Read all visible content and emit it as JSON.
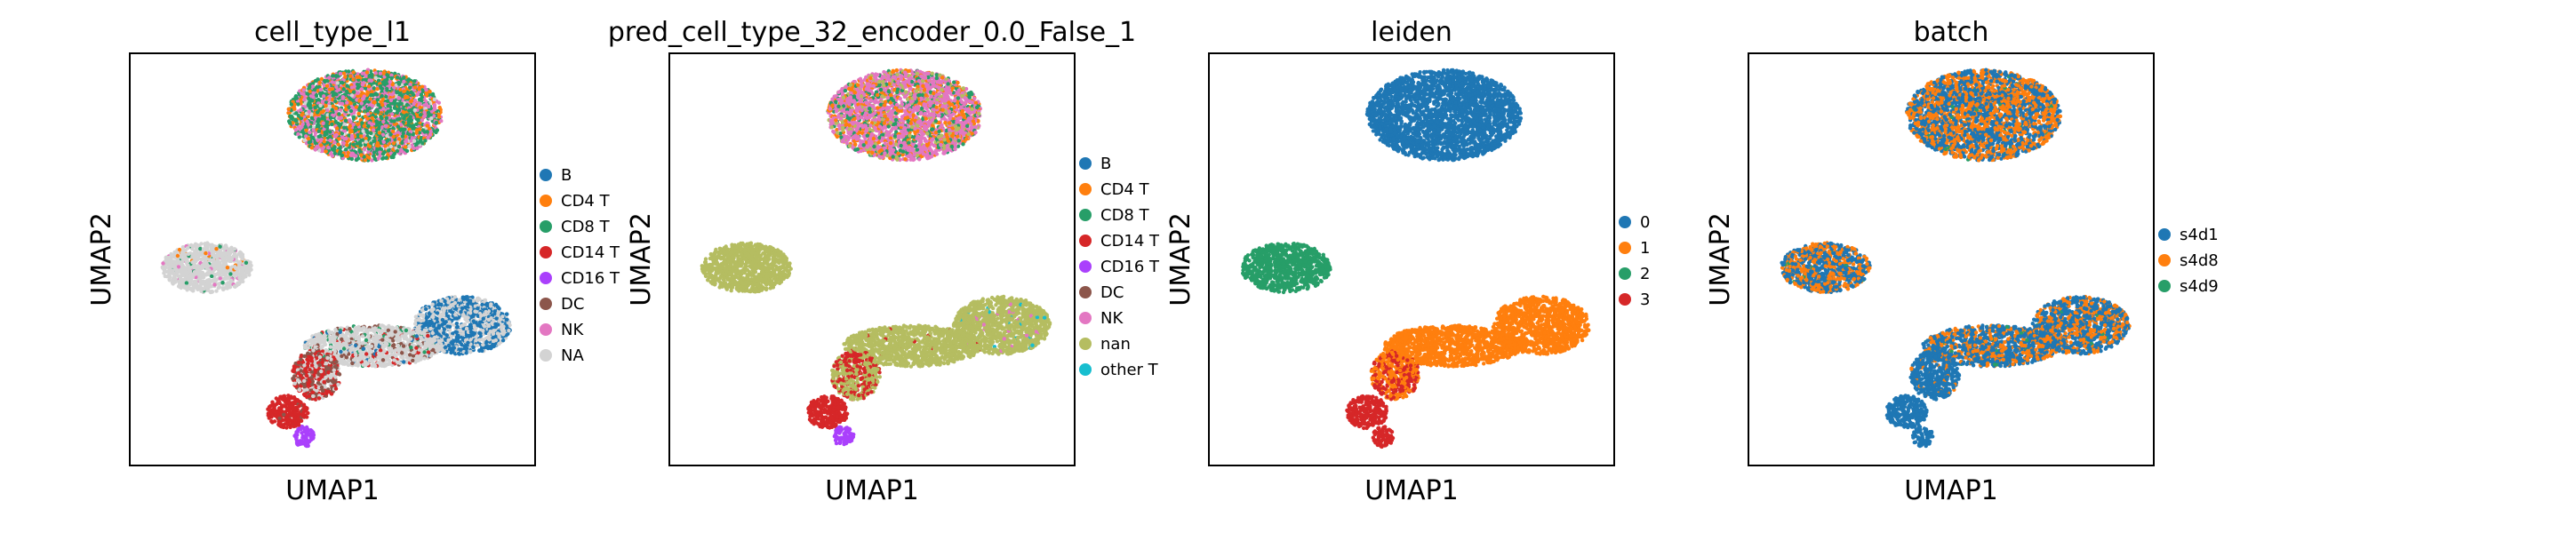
{
  "chart_data": [
    {
      "type": "scatter",
      "title": "cell_type_l1",
      "xlabel": "UMAP1",
      "ylabel": "UMAP2",
      "legend": [
        {
          "label": "B",
          "color": "#1f77b4"
        },
        {
          "label": "CD4 T",
          "color": "#ff7f0e"
        },
        {
          "label": "CD8 T",
          "color": "#279e68"
        },
        {
          "label": "CD14 T",
          "color": "#d62728"
        },
        {
          "label": "CD16 T",
          "color": "#aa40fc"
        },
        {
          "label": "DC",
          "color": "#8c564b"
        },
        {
          "label": "NK",
          "color": "#e377c2"
        },
        {
          "label": "NA",
          "color": "#d3d3d3"
        }
      ],
      "clusters": [
        {
          "name": "top",
          "cx": 0.58,
          "cy": 0.15,
          "rx": 0.19,
          "ry": 0.11,
          "mix": [
            [
              "CD8 T",
              0.45
            ],
            [
              "CD4 T",
              0.22
            ],
            [
              "NK",
              0.28
            ],
            [
              "NA",
              0.05
            ]
          ]
        },
        {
          "name": "left",
          "cx": 0.19,
          "cy": 0.52,
          "rx": 0.11,
          "ry": 0.06,
          "mix": [
            [
              "NA",
              0.92
            ],
            [
              "CD8 T",
              0.03
            ],
            [
              "NK",
              0.03
            ],
            [
              "CD4 T",
              0.02
            ]
          ]
        },
        {
          "name": "right",
          "cx": 0.82,
          "cy": 0.66,
          "rx": 0.12,
          "ry": 0.07,
          "mix": [
            [
              "B",
              0.55
            ],
            [
              "NA",
              0.45
            ]
          ]
        },
        {
          "name": "middle",
          "cx": 0.6,
          "cy": 0.71,
          "rx": 0.17,
          "ry": 0.05,
          "mix": [
            [
              "NA",
              0.75
            ],
            [
              "DC",
              0.1
            ],
            [
              "CD14 T",
              0.07
            ],
            [
              "CD8 T",
              0.05
            ],
            [
              "B",
              0.03
            ]
          ]
        },
        {
          "name": "bridge",
          "cx": 0.46,
          "cy": 0.78,
          "rx": 0.06,
          "ry": 0.06,
          "mix": [
            [
              "DC",
              0.4
            ],
            [
              "CD14 T",
              0.4
            ],
            [
              "NA",
              0.2
            ]
          ]
        },
        {
          "name": "bottom",
          "cx": 0.39,
          "cy": 0.87,
          "rx": 0.05,
          "ry": 0.04,
          "mix": [
            [
              "CD14 T",
              0.97
            ],
            [
              "DC",
              0.03
            ]
          ]
        },
        {
          "name": "bottom-tip",
          "cx": 0.43,
          "cy": 0.93,
          "rx": 0.025,
          "ry": 0.025,
          "mix": [
            [
              "CD16 T",
              1.0
            ]
          ]
        }
      ]
    },
    {
      "type": "scatter",
      "title": "pred_cell_type_32_encoder_0.0_False_1",
      "xlabel": "UMAP1",
      "ylabel": "UMAP2",
      "legend": [
        {
          "label": "B",
          "color": "#1f77b4"
        },
        {
          "label": "CD4 T",
          "color": "#ff7f0e"
        },
        {
          "label": "CD8 T",
          "color": "#279e68"
        },
        {
          "label": "CD14 T",
          "color": "#d62728"
        },
        {
          "label": "CD16 T",
          "color": "#aa40fc"
        },
        {
          "label": "DC",
          "color": "#8c564b"
        },
        {
          "label": "NK",
          "color": "#e377c2"
        },
        {
          "label": "nan",
          "color": "#b5bd61"
        },
        {
          "label": "other T",
          "color": "#17becf"
        }
      ],
      "clusters": [
        {
          "name": "top",
          "cx": 0.58,
          "cy": 0.15,
          "rx": 0.19,
          "ry": 0.11,
          "mix": [
            [
              "NK",
              0.55
            ],
            [
              "CD4 T",
              0.2
            ],
            [
              "CD8 T",
              0.15
            ],
            [
              "nan",
              0.1
            ]
          ]
        },
        {
          "name": "left",
          "cx": 0.19,
          "cy": 0.52,
          "rx": 0.11,
          "ry": 0.06,
          "mix": [
            [
              "nan",
              1.0
            ]
          ]
        },
        {
          "name": "right",
          "cx": 0.82,
          "cy": 0.66,
          "rx": 0.12,
          "ry": 0.07,
          "mix": [
            [
              "nan",
              0.95
            ],
            [
              "NK",
              0.03
            ],
            [
              "other T",
              0.02
            ]
          ]
        },
        {
          "name": "middle",
          "cx": 0.6,
          "cy": 0.71,
          "rx": 0.17,
          "ry": 0.05,
          "mix": [
            [
              "nan",
              0.98
            ],
            [
              "CD14 T",
              0.02
            ]
          ]
        },
        {
          "name": "bridge",
          "cx": 0.46,
          "cy": 0.78,
          "rx": 0.06,
          "ry": 0.06,
          "mix": [
            [
              "nan",
              0.6
            ],
            [
              "CD14 T",
              0.4
            ]
          ]
        },
        {
          "name": "bottom",
          "cx": 0.39,
          "cy": 0.87,
          "rx": 0.05,
          "ry": 0.04,
          "mix": [
            [
              "CD14 T",
              1.0
            ]
          ]
        },
        {
          "name": "bottom-tip",
          "cx": 0.43,
          "cy": 0.93,
          "rx": 0.025,
          "ry": 0.025,
          "mix": [
            [
              "CD16 T",
              1.0
            ]
          ]
        }
      ]
    },
    {
      "type": "scatter",
      "title": "leiden",
      "xlabel": "UMAP1",
      "ylabel": "UMAP2",
      "legend": [
        {
          "label": "0",
          "color": "#1f77b4"
        },
        {
          "label": "1",
          "color": "#ff7f0e"
        },
        {
          "label": "2",
          "color": "#279e68"
        },
        {
          "label": "3",
          "color": "#d62728"
        }
      ],
      "clusters": [
        {
          "name": "top",
          "cx": 0.58,
          "cy": 0.15,
          "rx": 0.19,
          "ry": 0.11,
          "mix": [
            [
              "0",
              1.0
            ]
          ]
        },
        {
          "name": "left",
          "cx": 0.19,
          "cy": 0.52,
          "rx": 0.11,
          "ry": 0.06,
          "mix": [
            [
              "2",
              1.0
            ]
          ]
        },
        {
          "name": "right",
          "cx": 0.82,
          "cy": 0.66,
          "rx": 0.12,
          "ry": 0.07,
          "mix": [
            [
              "1",
              1.0
            ]
          ]
        },
        {
          "name": "middle",
          "cx": 0.6,
          "cy": 0.71,
          "rx": 0.17,
          "ry": 0.05,
          "mix": [
            [
              "1",
              1.0
            ]
          ]
        },
        {
          "name": "bridge",
          "cx": 0.46,
          "cy": 0.78,
          "rx": 0.06,
          "ry": 0.06,
          "mix": [
            [
              "1",
              0.55
            ],
            [
              "3",
              0.45
            ]
          ]
        },
        {
          "name": "bottom",
          "cx": 0.39,
          "cy": 0.87,
          "rx": 0.05,
          "ry": 0.04,
          "mix": [
            [
              "3",
              1.0
            ]
          ]
        },
        {
          "name": "bottom-tip",
          "cx": 0.43,
          "cy": 0.93,
          "rx": 0.025,
          "ry": 0.025,
          "mix": [
            [
              "3",
              1.0
            ]
          ]
        }
      ]
    },
    {
      "type": "scatter",
      "title": "batch",
      "xlabel": "UMAP1",
      "ylabel": "UMAP2",
      "legend": [
        {
          "label": "s4d1",
          "color": "#1f77b4"
        },
        {
          "label": "s4d8",
          "color": "#ff7f0e"
        },
        {
          "label": "s4d9",
          "color": "#279e68"
        }
      ],
      "clusters": [
        {
          "name": "top",
          "cx": 0.58,
          "cy": 0.15,
          "rx": 0.19,
          "ry": 0.11,
          "mix": [
            [
              "s4d1",
              0.5
            ],
            [
              "s4d8",
              0.48
            ],
            [
              "s4d9",
              0.02
            ]
          ]
        },
        {
          "name": "left",
          "cx": 0.19,
          "cy": 0.52,
          "rx": 0.11,
          "ry": 0.06,
          "mix": [
            [
              "s4d1",
              0.55
            ],
            [
              "s4d8",
              0.43
            ],
            [
              "s4d9",
              0.02
            ]
          ]
        },
        {
          "name": "right",
          "cx": 0.82,
          "cy": 0.66,
          "rx": 0.12,
          "ry": 0.07,
          "mix": [
            [
              "s4d1",
              0.6
            ],
            [
              "s4d8",
              0.38
            ],
            [
              "s4d9",
              0.02
            ]
          ]
        },
        {
          "name": "middle",
          "cx": 0.6,
          "cy": 0.71,
          "rx": 0.17,
          "ry": 0.05,
          "mix": [
            [
              "s4d1",
              0.6
            ],
            [
              "s4d8",
              0.38
            ],
            [
              "s4d9",
              0.02
            ]
          ]
        },
        {
          "name": "bridge",
          "cx": 0.46,
          "cy": 0.78,
          "rx": 0.06,
          "ry": 0.06,
          "mix": [
            [
              "s4d1",
              0.95
            ],
            [
              "s4d8",
              0.05
            ]
          ]
        },
        {
          "name": "bottom",
          "cx": 0.39,
          "cy": 0.87,
          "rx": 0.05,
          "ry": 0.04,
          "mix": [
            [
              "s4d1",
              1.0
            ]
          ]
        },
        {
          "name": "bottom-tip",
          "cx": 0.43,
          "cy": 0.93,
          "rx": 0.025,
          "ry": 0.025,
          "mix": [
            [
              "s4d1",
              1.0
            ]
          ]
        }
      ]
    }
  ]
}
